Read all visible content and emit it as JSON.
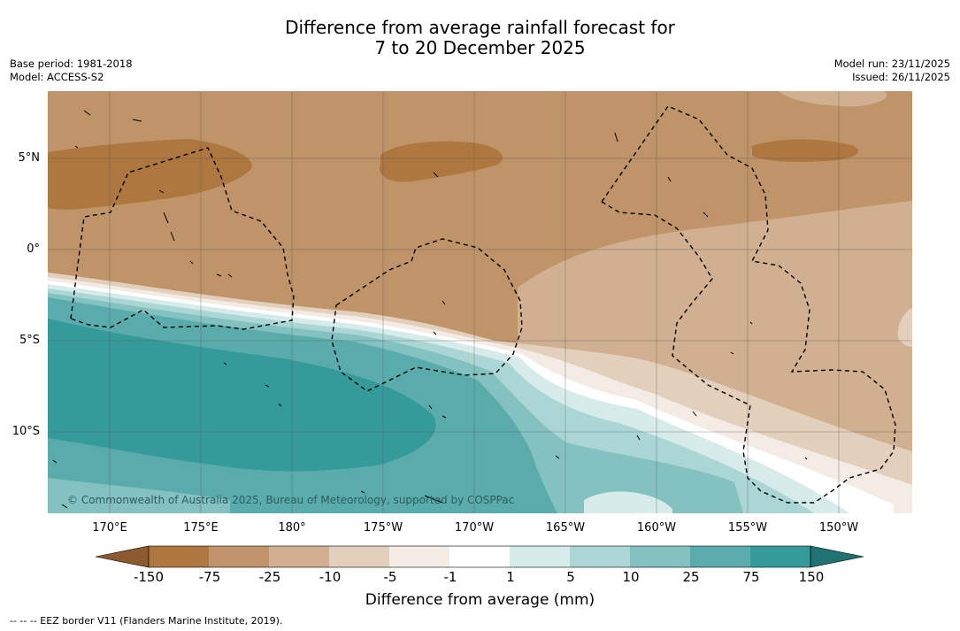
{
  "title": {
    "line1": "Difference from average rainfall forecast for",
    "line2": "7 to 20 December 2025"
  },
  "meta": {
    "base_period": "Base period: 1981-2018",
    "model": "Model: ACCESS-S2",
    "model_run": "Model run: 23/11/2025",
    "issued": "Issued: 26/11/2025"
  },
  "axes": {
    "lat_labels": [
      "5°N",
      "0°",
      "5°S",
      "10°S"
    ],
    "lon_labels": [
      "170°E",
      "175°E",
      "180°",
      "175°W",
      "170°W",
      "165°W",
      "160°W",
      "155°W",
      "150°W"
    ]
  },
  "copyright": "© Commonwealth of Australia 2025, Bureau of Meteorology, supported by COSPPac",
  "colorbar": {
    "title": "Difference from average (mm)",
    "labels": [
      "-150",
      "-75",
      "-25",
      "-10",
      "-5",
      "-1",
      "1",
      "5",
      "10",
      "25",
      "75",
      "150"
    ],
    "colors": {
      "below_-150": "#8c5a2e",
      "-150_-75": "#ad773f",
      "-75_-25": "#bf9468",
      "-25_-10": "#d0b090",
      "-10_-5": "#e3d0bc",
      "-5_-1": "#f3ebe4",
      "-1_1": "#ffffff",
      "1_5": "#d6ebea",
      "5_10": "#acd6d6",
      "10_25": "#84c1c1",
      "25_75": "#5aacac",
      "75_150": "#349a9a",
      "above_150": "#1f7373"
    }
  },
  "footnote": "-- -- -- EEZ border V11 (Flanders Marine Institute, 2019)."
}
